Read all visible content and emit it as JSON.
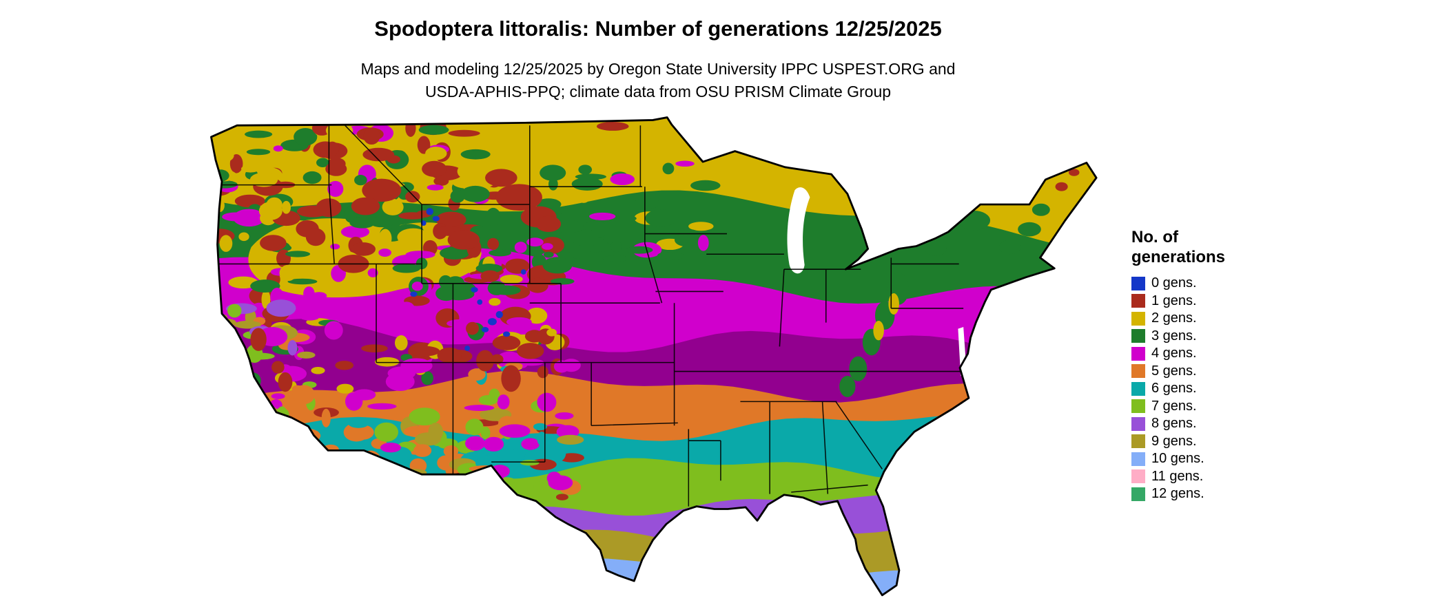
{
  "title": "Spodoptera littoralis: Number of generations 12/25/2025",
  "subtitle": {
    "line1": "Maps and modeling 12/25/2025 by Oregon State University IPPC USPEST.ORG and",
    "line2": "USDA-APHIS-PPQ; climate data from OSU PRISM Climate Group"
  },
  "legend": {
    "title_line1": "No. of",
    "title_line2": "generations",
    "items": [
      {
        "label": "0 gens.",
        "color": "#1437C8"
      },
      {
        "label": "1 gens.",
        "color": "#AA2B1D"
      },
      {
        "label": "2 gens.",
        "color": "#D4B400"
      },
      {
        "label": "3 gens.",
        "color": "#1E7D2C"
      },
      {
        "label": "4 gens.",
        "color": "#D000CC"
      },
      {
        "label": "5 gens.",
        "color": "#E07828"
      },
      {
        "label": "6 gens.",
        "color": "#0AA9A9"
      },
      {
        "label": "7 gens.",
        "color": "#7FBE1E"
      },
      {
        "label": "8 gens.",
        "color": "#9850D8"
      },
      {
        "label": "9 gens.",
        "color": "#AB9A26"
      },
      {
        "label": "10 gens.",
        "color": "#84AEF8"
      },
      {
        "label": "11 gens.",
        "color": "#FFADC6"
      },
      {
        "label": "12 gens.",
        "color": "#35A866"
      }
    ]
  }
}
